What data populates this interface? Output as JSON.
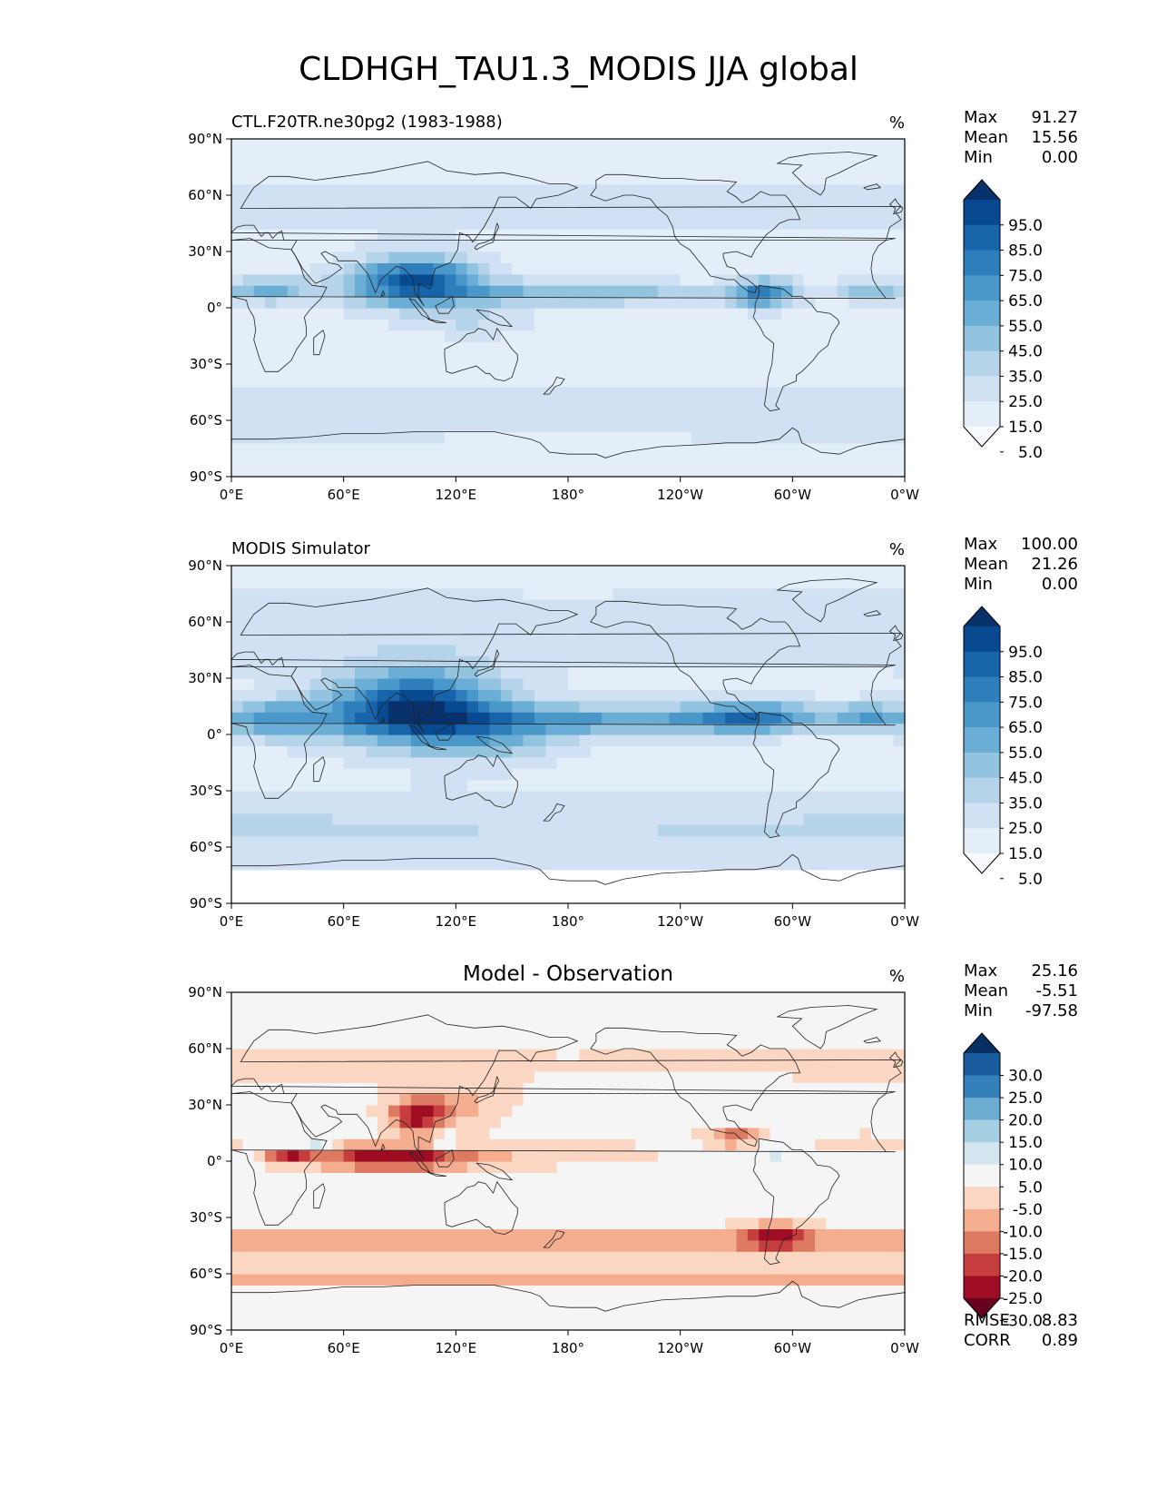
{
  "title": "CLDHGH_TAU1.3_MODIS JJA global",
  "x_ticks": [
    "0°E",
    "60°E",
    "120°E",
    "180°",
    "120°W",
    "60°W",
    "0°W"
  ],
  "y_ticks": [
    "90°N",
    "60°N",
    "30°N",
    "0°",
    "30°S",
    "60°S",
    "90°S"
  ],
  "panels": [
    {
      "id": "test",
      "title_left": "CTL.F20TR.ne30pg2 (1983-1988)",
      "title_center": "",
      "units": "%",
      "stats": [
        {
          "label": "Max",
          "value": "91.27"
        },
        {
          "label": "Mean",
          "value": "15.56"
        },
        {
          "label": "Min",
          "value": "0.00"
        }
      ],
      "colorbar_labels": [
        "95.0",
        "85.0",
        "75.0",
        "65.0",
        "55.0",
        "45.0",
        "35.0",
        "25.0",
        "15.0",
        "5.0"
      ],
      "colors": [
        "#f7fbff",
        "#e3eef9",
        "#cfe1f2",
        "#b5d4e9",
        "#93c4df",
        "#6aadd5",
        "#4a98c9",
        "#2e7ebc",
        "#1764ab",
        "#084a91",
        "#08306b"
      ]
    },
    {
      "id": "ref",
      "title_left": "MODIS Simulator",
      "title_center": "",
      "units": "%",
      "stats": [
        {
          "label": "Max",
          "value": "100.00"
        },
        {
          "label": "Mean",
          "value": "21.26"
        },
        {
          "label": "Min",
          "value": "0.00"
        }
      ],
      "colorbar_labels": [
        "95.0",
        "85.0",
        "75.0",
        "65.0",
        "55.0",
        "45.0",
        "35.0",
        "25.0",
        "15.0",
        "5.0"
      ],
      "colors": [
        "#f7fbff",
        "#e3eef9",
        "#cfe1f2",
        "#b5d4e9",
        "#93c4df",
        "#6aadd5",
        "#4a98c9",
        "#2e7ebc",
        "#1764ab",
        "#084a91",
        "#08306b"
      ]
    },
    {
      "id": "diff",
      "title_left": "",
      "title_center": "Model - Observation",
      "units": "%",
      "stats": [
        {
          "label": "Max",
          "value": "25.16"
        },
        {
          "label": "Mean",
          "value": "-5.51"
        },
        {
          "label": "Min",
          "value": "-97.58"
        }
      ],
      "colorbar_labels": [
        "30.0",
        "25.0",
        "20.0",
        "15.0",
        "10.0",
        "5.0",
        "-5.0",
        "-10.0",
        "-15.0",
        "-20.0",
        "-25.0",
        "-30.0"
      ],
      "colors": [
        "#67001f",
        "#9e0d24",
        "#c53e3d",
        "#df7a62",
        "#f4ad8e",
        "#fbd6c2",
        "#f5f5f5",
        "#d4e7f0",
        "#a5cfe3",
        "#6bacd0",
        "#3580b9",
        "#195b9d",
        "#053061"
      ],
      "bottom_stats": [
        {
          "label": "RMSE",
          "value": "8.83"
        },
        {
          "label": "CORR",
          "value": "0.89"
        }
      ]
    }
  ],
  "chart_data": [
    {
      "type": "heatmap",
      "title": "CTL.F20TR.ne30pg2 (1983-1988)",
      "projection": "PlateCarree",
      "lon_range": [
        0,
        360
      ],
      "lat_range": [
        -90,
        90
      ],
      "units": "%",
      "levels": [
        0,
        5,
        15,
        25,
        35,
        45,
        55,
        65,
        75,
        85,
        95,
        100
      ],
      "max": 91.27,
      "mean": 15.56,
      "min": 0.0
    },
    {
      "type": "heatmap",
      "title": "MODIS Simulator",
      "projection": "PlateCarree",
      "lon_range": [
        0,
        360
      ],
      "lat_range": [
        -90,
        90
      ],
      "units": "%",
      "levels": [
        0,
        5,
        15,
        25,
        35,
        45,
        55,
        65,
        75,
        85,
        95,
        100
      ],
      "max": 100.0,
      "mean": 21.26,
      "min": 0.0
    },
    {
      "type": "heatmap",
      "title": "Model - Observation",
      "projection": "PlateCarree",
      "lon_range": [
        0,
        360
      ],
      "lat_range": [
        -90,
        90
      ],
      "units": "%",
      "levels": [
        -30,
        -25,
        -20,
        -15,
        -10,
        -5,
        5,
        10,
        15,
        20,
        25,
        30
      ],
      "max": 25.16,
      "mean": -5.51,
      "min": -97.58,
      "rmse": 8.83,
      "corr": 0.89
    }
  ]
}
